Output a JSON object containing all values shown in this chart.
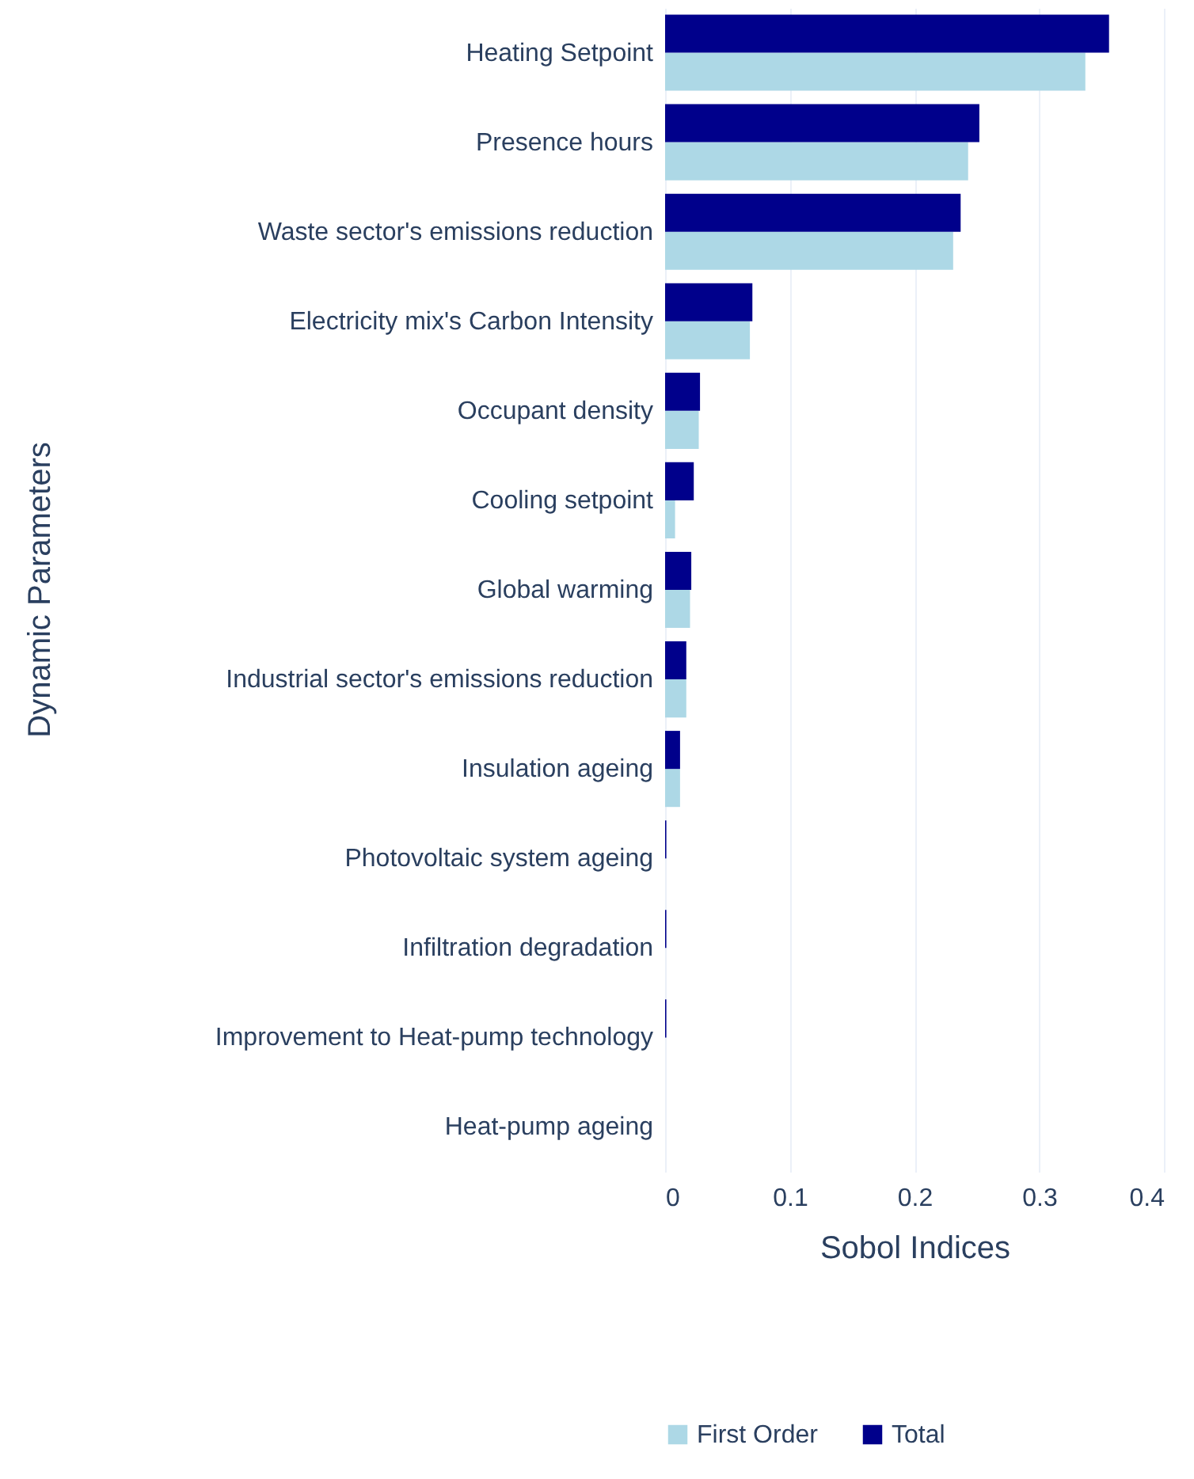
{
  "chart_data": {
    "type": "bar",
    "orientation": "horizontal",
    "xlabel": "Sobol Indices",
    "ylabel": "Dynamic Parameters",
    "categories": [
      "Heating Setpoint",
      "Presence hours",
      "Waste sector's emissions reduction",
      "Electricity mix's Carbon Intensity",
      "Occupant density",
      "Cooling setpoint",
      "Global warming",
      "Industrial sector's emissions reduction",
      "Insulation ageing",
      "Photovoltaic system ageing",
      "Infiltration degradation",
      "Improvement to Heat-pump technology",
      "Heat-pump ageing"
    ],
    "series": [
      {
        "name": "First Order",
        "color": "#add8e6",
        "values": [
          0.337,
          0.243,
          0.231,
          0.068,
          0.027,
          0.008,
          0.02,
          0.017,
          0.012,
          0.0,
          0.0,
          0.0,
          0.0
        ]
      },
      {
        "name": "Total",
        "color": "#00008b",
        "values": [
          0.356,
          0.252,
          0.237,
          0.07,
          0.028,
          0.023,
          0.021,
          0.017,
          0.012,
          0.001,
          0.001,
          0.001,
          0.0
        ]
      }
    ],
    "xlim": [
      0,
      0.4
    ],
    "xticks": [
      {
        "value": 0,
        "label": "0"
      },
      0.1,
      0.2,
      0.3,
      0.4
    ],
    "grid": "x",
    "legend": "bottom"
  }
}
